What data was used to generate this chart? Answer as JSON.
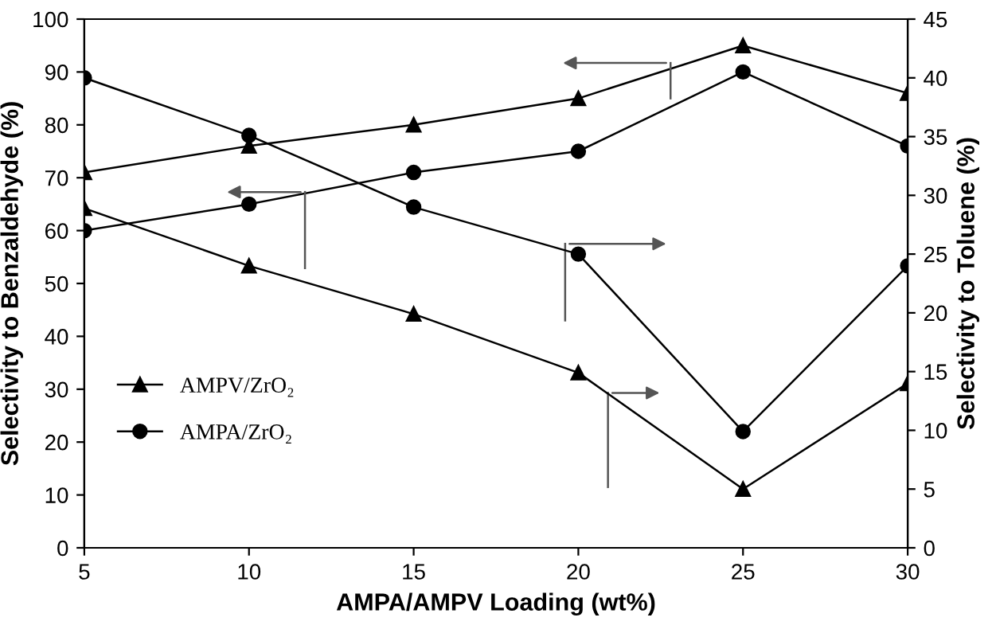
{
  "chart_data": {
    "type": "line",
    "xlabel": "AMPA/AMPV Loading (wt%)",
    "ylabel": "Selectivity to Benzaldehyde (%)",
    "y2label": "Selectivity to Toluene (%)",
    "x": [
      5,
      10,
      15,
      20,
      25,
      30
    ],
    "series": [
      {
        "name": "AMPV/ZrO₂",
        "color": "#000000",
        "marker": "triangle",
        "values": [
          71,
          76,
          80,
          85,
          95,
          86
        ]
      },
      {
        "name": "AMPA/ZrO₂",
        "color": "#000000",
        "marker": "circle",
        "values": [
          60,
          65,
          71,
          75,
          90,
          76
        ]
      },
      {
        "color": "#000000",
        "marker": "triangle",
        "axis": "y2",
        "values": [
          28.9,
          24,
          19.9,
          14.9,
          5,
          14
        ]
      },
      {
        "color": "#000000",
        "marker": "circle",
        "axis": "y2",
        "values": [
          40,
          35.1,
          29,
          25,
          9.9,
          24
        ]
      }
    ],
    "xlim": [
      5,
      30
    ],
    "xticks": [
      5,
      10,
      15,
      20,
      25,
      30
    ],
    "ylim": [
      0,
      100
    ],
    "yticks": [
      0,
      10,
      20,
      30,
      40,
      50,
      60,
      70,
      80,
      90,
      100
    ],
    "y2lim": [
      0,
      45
    ],
    "y2ticks": [
      0,
      5,
      10,
      15,
      20,
      25,
      30,
      35,
      40,
      45
    ],
    "grid": false,
    "legend": "bottom left"
  }
}
